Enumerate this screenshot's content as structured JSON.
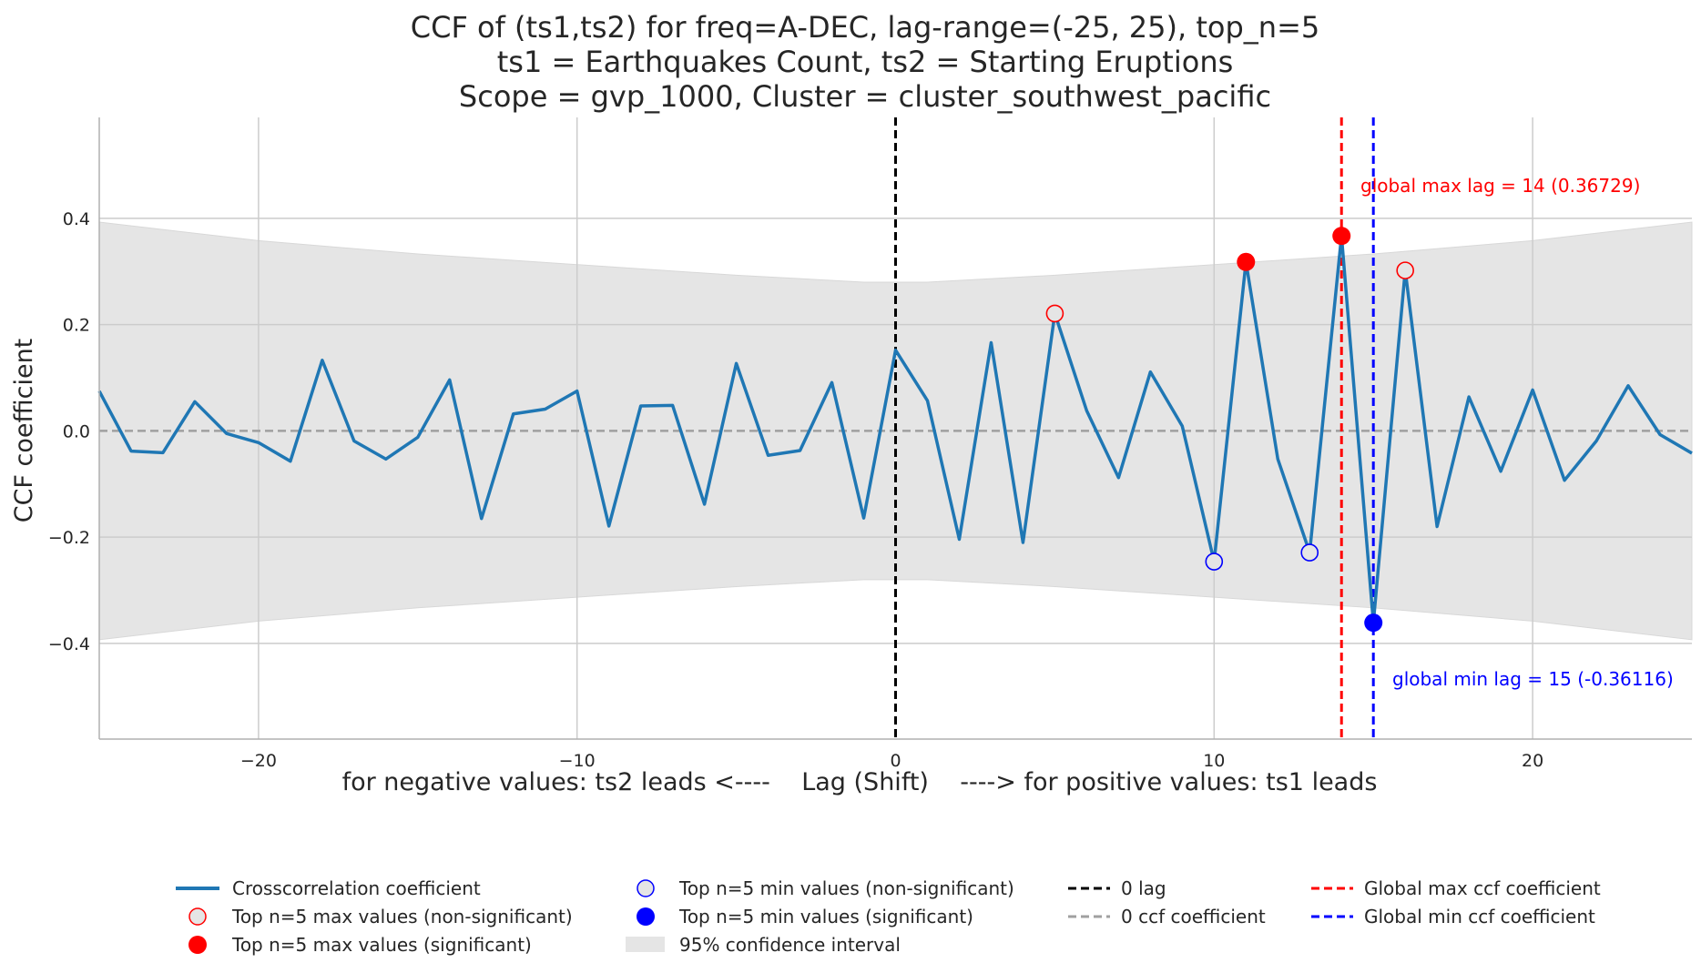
{
  "chart_data": {
    "type": "line",
    "title": [
      "CCF of (ts1,ts2) for freq=A-DEC, lag-range=(-25, 25), top_n=5",
      "ts1 = Earthquakes Count, ts2 = Starting Eruptions",
      "Scope = gvp_1000, Cluster = cluster_southwest_pacific"
    ],
    "xlabel": "for negative values: ts2 leads <----    Lag (Shift)    ----> for positive values: ts1 leads",
    "ylabel": "CCF coefficient",
    "xlim": [
      -25,
      25
    ],
    "ylim": [
      -0.58,
      0.59
    ],
    "x_ticks": [
      -20,
      -10,
      0,
      10,
      20
    ],
    "x_tick_labels": [
      "−20",
      "−10",
      "0",
      "10",
      "20"
    ],
    "y_ticks": [
      -0.4,
      -0.2,
      0.0,
      0.2,
      0.4
    ],
    "y_tick_labels": [
      "−0.4",
      "−0.2",
      "0.0",
      "0.2",
      "0.4"
    ],
    "grid": true,
    "series": [
      {
        "name": "Crosscorrelation coefficient",
        "color": "#1f77b4",
        "x": [
          -25,
          -24,
          -23,
          -22,
          -21,
          -20,
          -19,
          -18,
          -17,
          -16,
          -15,
          -14,
          -13,
          -12,
          -11,
          -10,
          -9,
          -8,
          -7,
          -6,
          -5,
          -4,
          -3,
          -2,
          -1,
          0,
          1,
          2,
          3,
          4,
          5,
          6,
          7,
          8,
          9,
          10,
          11,
          12,
          13,
          14,
          15,
          16,
          17,
          18,
          19,
          20,
          21,
          22,
          23,
          24,
          25
        ],
        "y": [
          0.075,
          -0.038,
          -0.041,
          0.055,
          -0.005,
          -0.022,
          -0.057,
          0.133,
          -0.019,
          -0.053,
          -0.012,
          0.096,
          -0.165,
          0.032,
          0.041,
          0.075,
          -0.179,
          0.047,
          0.048,
          -0.138,
          0.127,
          -0.046,
          -0.037,
          0.091,
          -0.164,
          0.152,
          0.057,
          -0.204,
          0.166,
          -0.21,
          0.221,
          0.038,
          -0.088,
          0.111,
          0.009,
          -0.246,
          0.318,
          -0.053,
          -0.229,
          0.367,
          -0.361,
          0.302,
          -0.18,
          0.064,
          -0.076,
          0.077,
          -0.093,
          -0.019,
          0.085,
          -0.007,
          -0.042
        ]
      }
    ],
    "confidence_interval": {
      "name": "95% confidence interval",
      "color": "#e5e5e5",
      "x": [
        -25,
        -20,
        -15,
        -10,
        -5,
        -1,
        0,
        1,
        5,
        10,
        15,
        20,
        25
      ],
      "upper": [
        0.393,
        0.358,
        0.333,
        0.313,
        0.293,
        0.28,
        0.28,
        0.28,
        0.293,
        0.313,
        0.333,
        0.358,
        0.393
      ]
    },
    "top_max": {
      "non_significant": {
        "name": "Top n=5 max values (non-significant)",
        "x": [
          5,
          16
        ],
        "y": [
          0.221,
          0.302
        ]
      },
      "significant": {
        "name": "Top n=5 max values (significant)",
        "x": [
          11,
          14
        ],
        "y": [
          0.318,
          0.367
        ]
      }
    },
    "top_min": {
      "non_significant": {
        "name": "Top n=5 min values (non-significant)",
        "x": [
          10,
          13
        ],
        "y": [
          -0.246,
          -0.229
        ]
      },
      "significant": {
        "name": "Top n=5 min values (significant)",
        "x": [
          15
        ],
        "y": [
          -0.361
        ]
      }
    },
    "reference_lines": {
      "zero_lag": {
        "name": "0 lag",
        "x": 0,
        "color": "#000000"
      },
      "zero_ccf": {
        "name": "0 ccf coefficient",
        "y": 0,
        "color": "#a0a0a0"
      },
      "global_max": {
        "name": "Global max ccf coefficient",
        "x": 14,
        "color": "#ff0000"
      },
      "global_min": {
        "name": "Global min ccf coefficient",
        "x": 15,
        "color": "#0000ff"
      }
    },
    "annotations": {
      "global_max_text": "global max lag = 14 (0.36729)",
      "global_min_text": "global min lag = 15 (-0.36116)"
    },
    "legend_placement": "bottom"
  }
}
